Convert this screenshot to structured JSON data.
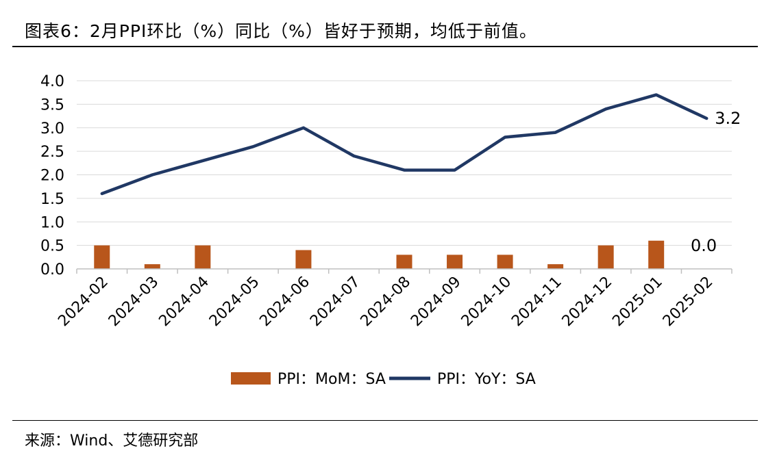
{
  "title": "图表6：2月PPI环比（%）同比（%）皆好于预期，均低于前值。",
  "source": "来源：Wind、艾德研究部",
  "chart_data": {
    "type": "bar+line",
    "categories": [
      "2024-02",
      "2024-03",
      "2024-04",
      "2024-05",
      "2024-06",
      "2024-07",
      "2024-08",
      "2024-09",
      "2024-10",
      "2024-11",
      "2024-12",
      "2025-01",
      "2025-02"
    ],
    "series": [
      {
        "name": "PPI：MoM：SA",
        "type": "bar",
        "color": "#B8561B",
        "values": [
          0.5,
          0.1,
          0.5,
          0.0,
          0.4,
          0.0,
          0.3,
          0.3,
          0.3,
          0.1,
          0.5,
          0.6,
          0.0
        ]
      },
      {
        "name": "PPI：YoY：SA",
        "type": "line",
        "color": "#203864",
        "values": [
          1.6,
          2.0,
          2.3,
          2.6,
          3.0,
          2.4,
          2.1,
          2.1,
          2.8,
          2.9,
          3.4,
          3.7,
          3.2
        ]
      }
    ],
    "yticks": [
      "0.0",
      "0.5",
      "1.0",
      "1.5",
      "2.0",
      "2.5",
      "3.0",
      "3.5",
      "4.0"
    ],
    "ylim": [
      0,
      4
    ],
    "grid": true,
    "legend_position": "bottom-center",
    "annotations": [
      {
        "series": "PPI：YoY：SA",
        "label": "3.2"
      },
      {
        "series": "PPI：MoM：SA",
        "label": "0.0"
      }
    ]
  }
}
